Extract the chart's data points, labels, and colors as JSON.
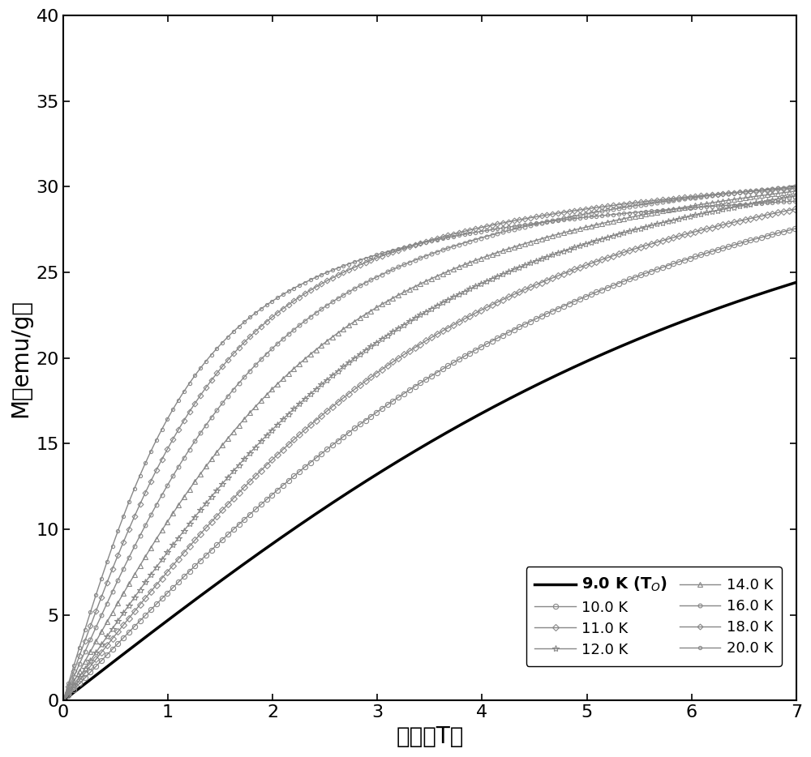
{
  "xlabel": "磁场（T）",
  "ylabel": "M（emu/g）",
  "xlim": [
    0,
    7
  ],
  "ylim": [
    0,
    40
  ],
  "xticks": [
    0,
    1,
    2,
    3,
    4,
    5,
    6,
    7
  ],
  "yticks": [
    0,
    5,
    10,
    15,
    20,
    25,
    30,
    35,
    40
  ],
  "background_color": "#ffffff",
  "params": [
    {
      "label": "9.0 K (T$_O$)",
      "M_sat": 39.8,
      "a": 2.8,
      "color": "#000000",
      "linestyle": "-",
      "marker": null,
      "lw": 2.5,
      "ms": 0,
      "bold": true
    },
    {
      "label": "10.0 K",
      "M_sat": 38.5,
      "a": 2.0,
      "color": "#888888",
      "linestyle": "-",
      "marker": "o",
      "lw": 1.0,
      "ms": 4.5,
      "bold": false
    },
    {
      "label": "11.0 K",
      "M_sat": 37.2,
      "a": 1.6,
      "color": "#888888",
      "linestyle": "-",
      "marker": "D",
      "lw": 1.0,
      "ms": 4.0,
      "bold": false
    },
    {
      "label": "12.0 K",
      "M_sat": 36.5,
      "a": 1.35,
      "color": "#888888",
      "linestyle": "-",
      "marker": "*",
      "lw": 1.0,
      "ms": 6.0,
      "bold": false
    },
    {
      "label": "14.0 K",
      "M_sat": 35.0,
      "a": 1.05,
      "color": "#888888",
      "linestyle": "-",
      "marker": "^",
      "lw": 1.0,
      "ms": 4.5,
      "bold": false
    },
    {
      "label": "16.0 K",
      "M_sat": 34.0,
      "a": 0.82,
      "color": "#888888",
      "linestyle": "-",
      "marker": "o",
      "lw": 1.0,
      "ms": 3.5,
      "bold": false
    },
    {
      "label": "18.0 K",
      "M_sat": 33.0,
      "a": 0.65,
      "color": "#888888",
      "linestyle": "-",
      "marker": "D",
      "lw": 1.0,
      "ms": 3.5,
      "bold": false
    },
    {
      "label": "20.0 K",
      "M_sat": 31.5,
      "a": 0.52,
      "color": "#888888",
      "linestyle": "-",
      "marker": "o",
      "lw": 1.0,
      "ms": 3.0,
      "bold": false
    }
  ],
  "legend_fontsize": 13,
  "axis_fontsize": 20,
  "tick_fontsize": 16
}
